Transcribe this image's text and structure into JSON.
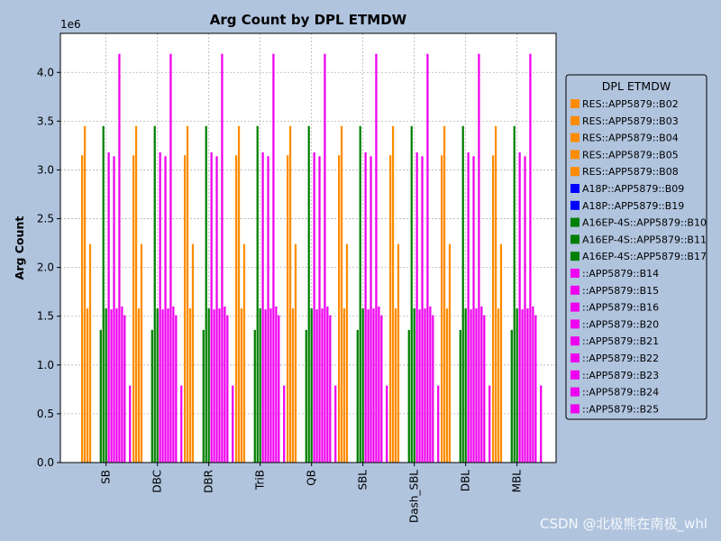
{
  "chart_data": {
    "type": "bar",
    "title": "Arg Count by DPL ETMDW",
    "xlabel": "",
    "ylabel": "Arg Count",
    "y_offset_label": "1e6",
    "ylim": [
      0,
      4.4
    ],
    "yticks": [
      0.0,
      0.5,
      1.0,
      1.5,
      2.0,
      2.5,
      3.0,
      3.5,
      4.0
    ],
    "ytick_labels": [
      "0.0",
      "0.5",
      "1.0",
      "1.5",
      "2.0",
      "2.5",
      "3.0",
      "3.5",
      "4.0"
    ],
    "grid": true,
    "legend_title": "DPL ETMDW",
    "legend_position": "right",
    "categories": [
      "SB",
      "DBC",
      "DBR",
      "TriB",
      "QB",
      "SBL",
      "Dash_SBL",
      "DBL",
      "MBL"
    ],
    "series": [
      {
        "name": "RES::APP5879::B02",
        "color": "#ff8c00",
        "values": [
          3.15,
          3.15,
          3.15,
          3.15,
          3.15,
          3.15,
          3.15,
          3.15,
          3.15
        ]
      },
      {
        "name": "RES::APP5879::B03",
        "color": "#ff8c00",
        "values": [
          3.45,
          3.45,
          3.45,
          3.45,
          3.45,
          3.45,
          3.45,
          3.45,
          3.45
        ]
      },
      {
        "name": "RES::APP5879::B04",
        "color": "#ff8c00",
        "values": [
          1.58,
          1.58,
          1.58,
          1.58,
          1.58,
          1.58,
          1.58,
          1.58,
          1.58
        ]
      },
      {
        "name": "RES::APP5879::B05",
        "color": "#ff8c00",
        "values": [
          2.24,
          2.24,
          2.24,
          2.24,
          2.24,
          2.24,
          2.24,
          2.24,
          2.24
        ]
      },
      {
        "name": "RES::APP5879::B08",
        "color": "#ff8c00",
        "values": [
          0,
          0,
          0,
          0,
          0,
          0,
          0,
          0,
          0
        ]
      },
      {
        "name": "A18P::APP5879::B09",
        "color": "#0000ff",
        "values": [
          0,
          0,
          0,
          0,
          0,
          0,
          0,
          0,
          0
        ]
      },
      {
        "name": "A18P::APP5879::B19",
        "color": "#0000ff",
        "values": [
          0,
          0,
          0,
          0,
          0,
          0,
          0,
          0,
          0
        ]
      },
      {
        "name": "A16EP-4S::APP5879::B10",
        "color": "#008000",
        "values": [
          1.36,
          1.36,
          1.36,
          1.36,
          1.36,
          1.36,
          1.36,
          1.36,
          1.36
        ]
      },
      {
        "name": "A16EP-4S::APP5879::B11",
        "color": "#008000",
        "values": [
          3.45,
          3.45,
          3.45,
          3.45,
          3.45,
          3.45,
          3.45,
          3.45,
          3.45
        ]
      },
      {
        "name": "A16EP-4S::APP5879::B17",
        "color": "#008000",
        "values": [
          1.58,
          1.58,
          1.58,
          1.58,
          1.58,
          1.58,
          1.58,
          1.58,
          1.58
        ]
      },
      {
        "name": "::APP5879::B14",
        "color": "#ee00ee",
        "values": [
          3.18,
          3.18,
          3.18,
          3.18,
          3.18,
          3.18,
          3.18,
          3.18,
          3.18
        ]
      },
      {
        "name": "::APP5879::B15",
        "color": "#ee00ee",
        "values": [
          1.57,
          1.57,
          1.57,
          1.57,
          1.57,
          1.57,
          1.57,
          1.57,
          1.57
        ]
      },
      {
        "name": "::APP5879::B16",
        "color": "#ee00ee",
        "values": [
          3.14,
          3.14,
          3.14,
          3.14,
          3.14,
          3.14,
          3.14,
          3.14,
          3.14
        ]
      },
      {
        "name": "::APP5879::B20",
        "color": "#ee00ee",
        "values": [
          1.58,
          1.58,
          1.58,
          1.58,
          1.58,
          1.58,
          1.58,
          1.58,
          1.58
        ]
      },
      {
        "name": "::APP5879::B21",
        "color": "#ee00ee",
        "values": [
          4.19,
          4.19,
          4.19,
          4.19,
          4.19,
          4.19,
          4.19,
          4.19,
          4.19
        ]
      },
      {
        "name": "::APP5879::B22",
        "color": "#ee00ee",
        "values": [
          1.6,
          1.6,
          1.6,
          1.6,
          1.6,
          1.6,
          1.6,
          1.6,
          1.6
        ]
      },
      {
        "name": "::APP5879::B23",
        "color": "#ee00ee",
        "values": [
          1.51,
          1.51,
          1.51,
          1.51,
          1.51,
          1.51,
          1.51,
          1.51,
          1.51
        ]
      },
      {
        "name": "::APP5879::B24",
        "color": "#ee00ee",
        "values": [
          0,
          0,
          0,
          0,
          0,
          0,
          0,
          0,
          0
        ]
      },
      {
        "name": "::APP5879::B25",
        "color": "#ee00ee",
        "values": [
          0.79,
          0.79,
          0.79,
          0.79,
          0.79,
          0.79,
          0.79,
          0.79,
          0.79
        ]
      }
    ]
  },
  "watermark": "CSDN @北极熊在南极_whl"
}
